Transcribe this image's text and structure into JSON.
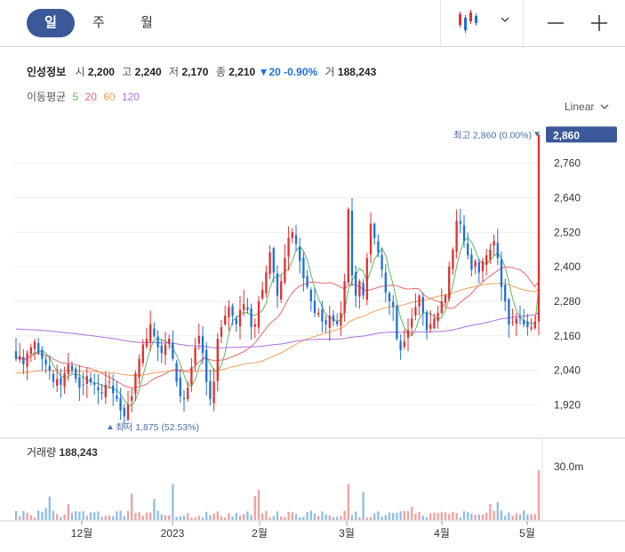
{
  "toolbar": {
    "periods": [
      "일",
      "주",
      "월"
    ],
    "active_period": "일"
  },
  "legend": {
    "name": "인성정보",
    "open_label": "시",
    "open": "2,200",
    "high_label": "고",
    "high": "2,240",
    "low_label": "저",
    "low": "2,170",
    "close_label": "종",
    "close": "2,210",
    "change": "▼20 -0.90%",
    "volume_label": "거",
    "volume": "188,243"
  },
  "ma_legend": {
    "label": "이동평균",
    "periods": [
      "5",
      "20",
      "60",
      "120"
    ],
    "colors": [
      "#5cb85c",
      "#e86a6a",
      "#f0a060",
      "#a970e0"
    ]
  },
  "scale_toggle": "Linear",
  "colors": {
    "up": "#e03030",
    "down": "#1e6fd9",
    "accent": "#3b5999"
  },
  "chart_data": {
    "type": "candlestick",
    "y_ticks": [
      "2,760",
      "2,640",
      "2,520",
      "2,400",
      "2,280",
      "2,160",
      "2,040",
      "1,920"
    ],
    "y_tick_values": [
      2760,
      2640,
      2520,
      2400,
      2280,
      2160,
      2040,
      1920
    ],
    "ylim": [
      1875,
      2895
    ],
    "x_ticks": [
      "12월",
      "2023",
      "2월",
      "3월",
      "4월",
      "5월"
    ],
    "current_price": "2,860",
    "max_label": "최고 2,860 (0.00%)",
    "min_label": "최저 1,875 (52.53%)",
    "volume_title": "거래량",
    "volume_value": "188,243",
    "volume_tick": "30.0m",
    "series": {
      "close": [
        2080,
        2090,
        2060,
        2100,
        2120,
        2140,
        2100,
        2080,
        2060,
        2040,
        2000,
        2010,
        1990,
        2030,
        2060,
        2040,
        2010,
        1980,
        1990,
        2020,
        2000,
        1990,
        1970,
        1960,
        1990,
        2000,
        1960,
        1940,
        1900,
        1880,
        1920,
        1950,
        2030,
        2080,
        2130,
        2150,
        2200,
        2160,
        2120,
        2100,
        2130,
        2150,
        2080,
        2000,
        1950,
        1940,
        1980,
        2050,
        2120,
        2160,
        2100,
        2000,
        1940,
        2000,
        2150,
        2190,
        2230,
        2260,
        2230,
        2200,
        2250,
        2270,
        2250,
        2190,
        2200,
        2280,
        2320,
        2380,
        2450,
        2380,
        2300,
        2350,
        2430,
        2500,
        2520,
        2480,
        2420,
        2360,
        2330,
        2280,
        2240,
        2240,
        2210,
        2200,
        2230,
        2210,
        2200,
        2240,
        2350,
        2600,
        2370,
        2300,
        2350,
        2300,
        2430,
        2550,
        2500,
        2450,
        2390,
        2310,
        2280,
        2260,
        2150,
        2110,
        2140,
        2180,
        2220,
        2260,
        2300,
        2240,
        2180,
        2200,
        2220,
        2240,
        2280,
        2300,
        2400,
        2460,
        2560,
        2550,
        2490,
        2440,
        2390,
        2420,
        2380,
        2420,
        2440,
        2460,
        2490,
        2430,
        2330,
        2280,
        2200,
        2210,
        2220,
        2220,
        2200,
        2190,
        2190,
        2210,
        2860
      ]
    }
  }
}
